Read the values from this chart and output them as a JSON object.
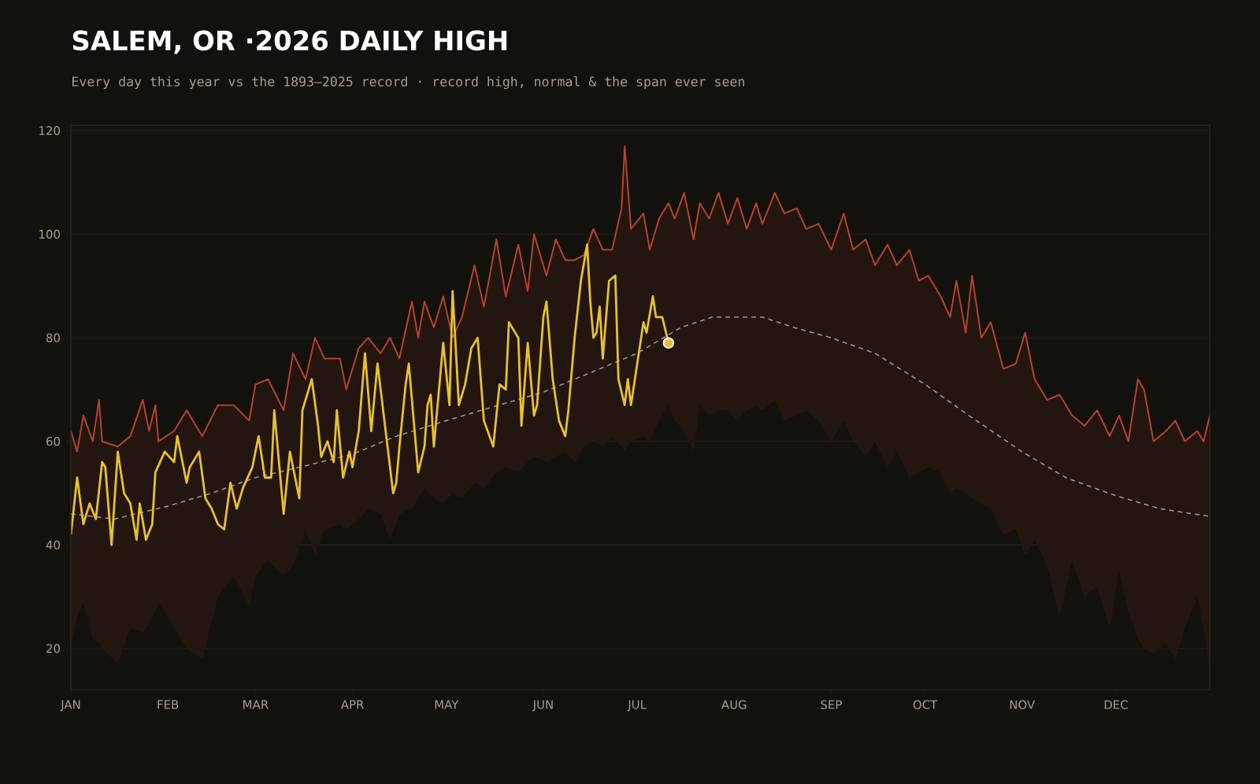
{
  "chart_data": {
    "type": "line",
    "title": "SALEM, OR ·2026 DAILY HIGH",
    "subtitle": "Every day this year vs the 1893–2025 record · record high, normal & the span ever seen",
    "xlim": [
      "2026-01-01",
      "2026-12-31"
    ],
    "xticks": [
      {
        "value": "2026-01-01",
        "label": "JAN"
      },
      {
        "value": "2026-02-01",
        "label": "FEB"
      },
      {
        "value": "2026-03-01",
        "label": "MAR"
      },
      {
        "value": "2026-04-01",
        "label": "APR"
      },
      {
        "value": "2026-05-01",
        "label": "MAY"
      },
      {
        "value": "2026-06-01",
        "label": "JUN"
      },
      {
        "value": "2026-07-01",
        "label": "JUL"
      },
      {
        "value": "2026-08-01",
        "label": "AUG"
      },
      {
        "value": "2026-09-01",
        "label": "SEP"
      },
      {
        "value": "2026-10-01",
        "label": "OCT"
      },
      {
        "value": "2026-11-01",
        "label": "NOV"
      },
      {
        "value": "2026-12-01",
        "label": "DEC"
      }
    ],
    "ylim": [
      12,
      121
    ],
    "yticks": [
      20,
      40,
      60,
      80,
      100,
      120
    ],
    "grid": "y",
    "series": [
      {
        "color": "#b5432a",
        "x": [
          "2026-01-01",
          "2026-01-03",
          "2026-01-05",
          "2026-01-08",
          "2026-01-10",
          "2026-01-11",
          "2026-01-16",
          "2026-01-20",
          "2026-01-24",
          "2026-01-26",
          "2026-01-28",
          "2026-01-29",
          "2026-02-03",
          "2026-02-07",
          "2026-02-12",
          "2026-02-17",
          "2026-02-22",
          "2026-02-27",
          "2026-03-01",
          "2026-03-05",
          "2026-03-10",
          "2026-03-13",
          "2026-03-17",
          "2026-03-20",
          "2026-03-23",
          "2026-03-28",
          "2026-03-30",
          "2026-04-03",
          "2026-04-06",
          "2026-04-10",
          "2026-04-13",
          "2026-04-16",
          "2026-04-20",
          "2026-04-22",
          "2026-04-24",
          "2026-04-27",
          "2026-04-30",
          "2026-05-03",
          "2026-05-06",
          "2026-05-10",
          "2026-05-13",
          "2026-05-17",
          "2026-05-20",
          "2026-05-24",
          "2026-05-27",
          "2026-05-29",
          "2026-06-02",
          "2026-06-05",
          "2026-06-08",
          "2026-06-11",
          "2026-06-14",
          "2026-06-17",
          "2026-06-20",
          "2026-06-23",
          "2026-06-26",
          "2026-06-27",
          "2026-06-29",
          "2026-07-03",
          "2026-07-05",
          "2026-07-08",
          "2026-07-11",
          "2026-07-13",
          "2026-07-16",
          "2026-07-19",
          "2026-07-21",
          "2026-07-24",
          "2026-07-27",
          "2026-07-30",
          "2026-08-02",
          "2026-08-05",
          "2026-08-08",
          "2026-08-10",
          "2026-08-14",
          "2026-08-17",
          "2026-08-21",
          "2026-08-24",
          "2026-08-28",
          "2026-09-01",
          "2026-09-05",
          "2026-09-08",
          "2026-09-12",
          "2026-09-15",
          "2026-09-19",
          "2026-09-22",
          "2026-09-26",
          "2026-09-29",
          "2026-10-02",
          "2026-10-06",
          "2026-10-09",
          "2026-10-11",
          "2026-10-14",
          "2026-10-16",
          "2026-10-19",
          "2026-10-22",
          "2026-10-26",
          "2026-10-30",
          "2026-11-02",
          "2026-11-05",
          "2026-11-09",
          "2026-11-13",
          "2026-11-17",
          "2026-11-21",
          "2026-11-25",
          "2026-11-29",
          "2026-12-02",
          "2026-12-05",
          "2026-12-08",
          "2026-12-10",
          "2026-12-13",
          "2026-12-17",
          "2026-12-20",
          "2026-12-23",
          "2026-12-27",
          "2026-12-29",
          "2026-12-31"
        ],
        "values": [
          62,
          58,
          65,
          60,
          68,
          60,
          59,
          61,
          68,
          62,
          67,
          60,
          62,
          66,
          61,
          67,
          67,
          64,
          71,
          72,
          66,
          77,
          72,
          80,
          76,
          76,
          70,
          78,
          80,
          77,
          80,
          76,
          87,
          80,
          87,
          82,
          88,
          80,
          84,
          94,
          86,
          99,
          88,
          98,
          89,
          100,
          92,
          99,
          95,
          95,
          96,
          101,
          97,
          97,
          105,
          117,
          101,
          104,
          97,
          103,
          106,
          103,
          108,
          99,
          106,
          103,
          108,
          102,
          107,
          101,
          106,
          102,
          108,
          104,
          105,
          101,
          102,
          97,
          104,
          97,
          99,
          94,
          98,
          94,
          97,
          91,
          92,
          88,
          84,
          91,
          81,
          92,
          80,
          83,
          74,
          75,
          81,
          72,
          68,
          69,
          65,
          63,
          66,
          61,
          65,
          60,
          72,
          70,
          60,
          62,
          64,
          60,
          62,
          60,
          65
        ],
        "lower": [
          20,
          26,
          29,
          22,
          21,
          20,
          17,
          24,
          23,
          25,
          27,
          29,
          24,
          20,
          18,
          30,
          34,
          28,
          34,
          37,
          34,
          36,
          43,
          38,
          43,
          44,
          43,
          45,
          47,
          46,
          41,
          46,
          47,
          49,
          51,
          49,
          48,
          50,
          49,
          52,
          51,
          54,
          55,
          54,
          56,
          57,
          56,
          57,
          58,
          56,
          59,
          60,
          59,
          61,
          59,
          58,
          60,
          61,
          60,
          64,
          67,
          64,
          62,
          58,
          67,
          65,
          66,
          66,
          64,
          66,
          67,
          66,
          68,
          64,
          65,
          66,
          64,
          60,
          64,
          60,
          57,
          60,
          55,
          58,
          53,
          54,
          55,
          54,
          50,
          51,
          50,
          49,
          48,
          47,
          42,
          43,
          38,
          41,
          36,
          26,
          37,
          30,
          32,
          24,
          35,
          27,
          22,
          20,
          19,
          21,
          18,
          24,
          30,
          24,
          16
        ],
        "upper": [
          62,
          58,
          65,
          60,
          68,
          60,
          59,
          61,
          68,
          62,
          67,
          60,
          62,
          66,
          61,
          67,
          67,
          64,
          71,
          72,
          66,
          77,
          72,
          80,
          76,
          76,
          70,
          78,
          80,
          77,
          80,
          76,
          87,
          80,
          87,
          82,
          88,
          80,
          84,
          94,
          86,
          99,
          88,
          98,
          89,
          100,
          92,
          99,
          95,
          95,
          96,
          101,
          97,
          97,
          105,
          117,
          101,
          104,
          97,
          103,
          106,
          103,
          108,
          99,
          106,
          103,
          108,
          102,
          107,
          101,
          106,
          102,
          108,
          104,
          105,
          101,
          102,
          97,
          104,
          97,
          99,
          94,
          98,
          94,
          97,
          91,
          92,
          88,
          84,
          91,
          81,
          92,
          80,
          83,
          74,
          75,
          81,
          72,
          68,
          69,
          65,
          63,
          66,
          61,
          65,
          60,
          72,
          70,
          60,
          62,
          64,
          60,
          62,
          60,
          65
        ]
      },
      {
        "color": "#a09580",
        "line_style": "dashed",
        "x": [
          "2026-01-01",
          "2026-01-15",
          "2026-02-01",
          "2026-02-15",
          "2026-03-01",
          "2026-03-15",
          "2026-04-01",
          "2026-04-15",
          "2026-05-01",
          "2026-05-15",
          "2026-06-01",
          "2026-06-15",
          "2026-07-01",
          "2026-07-15",
          "2026-07-25",
          "2026-08-01",
          "2026-08-10",
          "2026-08-20",
          "2026-09-01",
          "2026-09-15",
          "2026-10-01",
          "2026-10-15",
          "2026-11-01",
          "2026-11-15",
          "2026-12-01",
          "2026-12-15",
          "2026-12-31"
        ],
        "values": [
          46,
          45,
          47.5,
          50,
          53,
          55,
          57.5,
          61,
          64,
          66.5,
          69.5,
          73,
          77,
          82,
          84,
          84,
          84,
          82,
          80,
          77,
          71,
          65,
          58,
          53,
          49.5,
          47,
          45.5
        ]
      },
      {
        "color": "#e8c030",
        "x": [
          "2026-01-01",
          "2026-01-03",
          "2026-01-05",
          "2026-01-07",
          "2026-01-09",
          "2026-01-11",
          "2026-01-12",
          "2026-01-14",
          "2026-01-16",
          "2026-01-18",
          "2026-01-20",
          "2026-01-22",
          "2026-01-23",
          "2026-01-25",
          "2026-01-27",
          "2026-01-28",
          "2026-01-31",
          "2026-02-03",
          "2026-02-04",
          "2026-02-07",
          "2026-02-08",
          "2026-02-11",
          "2026-02-13",
          "2026-02-15",
          "2026-02-17",
          "2026-02-19",
          "2026-02-21",
          "2026-02-23",
          "2026-02-25",
          "2026-02-28",
          "2026-03-02",
          "2026-03-04",
          "2026-03-06",
          "2026-03-07",
          "2026-03-10",
          "2026-03-12",
          "2026-03-15",
          "2026-03-16",
          "2026-03-19",
          "2026-03-21",
          "2026-03-22",
          "2026-03-24",
          "2026-03-26",
          "2026-03-27",
          "2026-03-29",
          "2026-03-31",
          "2026-04-01",
          "2026-04-03",
          "2026-04-05",
          "2026-04-07",
          "2026-04-09",
          "2026-04-11",
          "2026-04-14",
          "2026-04-15",
          "2026-04-16",
          "2026-04-18",
          "2026-04-19",
          "2026-04-22",
          "2026-04-24",
          "2026-04-25",
          "2026-04-26",
          "2026-04-27",
          "2026-04-30",
          "2026-05-02",
          "2026-05-03",
          "2026-05-05",
          "2026-05-07",
          "2026-05-09",
          "2026-05-11",
          "2026-05-13",
          "2026-05-16",
          "2026-05-18",
          "2026-05-20",
          "2026-05-21",
          "2026-05-24",
          "2026-05-25",
          "2026-05-27",
          "2026-05-29",
          "2026-05-30",
          "2026-06-01",
          "2026-06-02",
          "2026-06-04",
          "2026-06-06",
          "2026-06-08",
          "2026-06-09",
          "2026-06-11",
          "2026-06-13",
          "2026-06-15",
          "2026-06-16",
          "2026-06-17",
          "2026-06-18",
          "2026-06-19",
          "2026-06-20",
          "2026-06-22",
          "2026-06-24",
          "2026-06-25",
          "2026-06-27",
          "2026-06-28",
          "2026-06-29",
          "2026-07-01",
          "2026-07-03",
          "2026-07-04",
          "2026-07-06",
          "2026-07-07",
          "2026-07-09",
          "2026-07-11"
        ],
        "values": [
          42,
          53,
          44,
          48,
          45,
          56,
          55,
          40,
          58,
          50,
          48,
          41,
          48,
          41,
          44,
          54,
          58,
          56,
          61,
          52,
          55,
          58,
          49,
          47,
          44,
          43,
          52,
          47,
          51,
          55,
          61,
          53,
          53,
          66,
          46,
          58,
          49,
          66,
          72,
          63,
          57,
          60,
          56,
          66,
          53,
          58,
          55,
          62,
          77,
          62,
          75,
          65,
          50,
          52,
          59,
          71,
          75,
          54,
          59,
          67,
          69,
          59,
          79,
          67,
          89,
          67,
          71,
          78,
          80,
          64,
          59,
          71,
          70,
          83,
          80,
          63,
          79,
          65,
          67,
          84,
          87,
          72,
          64,
          61,
          66,
          80,
          91,
          98,
          87,
          80,
          81,
          86,
          76,
          91,
          92,
          72,
          67,
          72,
          67,
          75,
          83,
          81,
          88,
          84,
          84,
          79
        ]
      },
      {
        "type": "scatter",
        "color": "#f0b840",
        "x": [
          "2026-07-11"
        ],
        "values": [
          79
        ]
      }
    ]
  }
}
